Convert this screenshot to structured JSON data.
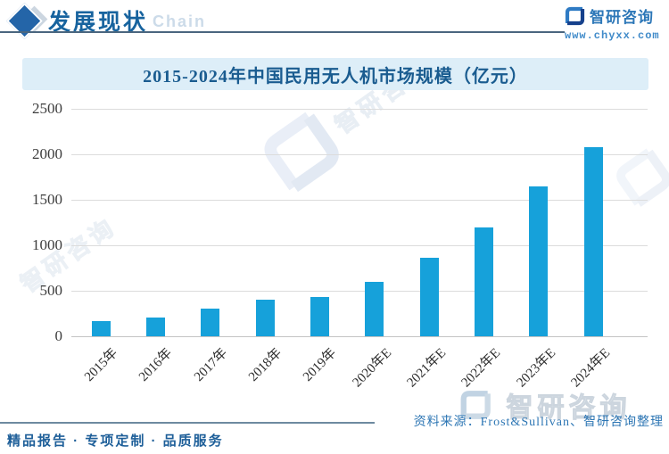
{
  "header": {
    "section_title": "发展现状",
    "watermark_text": "Chain",
    "brand_name": "智研咨询",
    "brand_url": "www.chyxx.com"
  },
  "chart_data": {
    "type": "bar",
    "title": "2015-2024年中国民用无人机市场规模（亿元）",
    "categories": [
      "2015年",
      "2016年",
      "2017年",
      "2018年",
      "2019年",
      "2020年E",
      "2021年E",
      "2022年E",
      "2023年E",
      "2024年E"
    ],
    "values": [
      165,
      205,
      305,
      405,
      435,
      600,
      865,
      1195,
      1650,
      2075
    ],
    "xlabel": "",
    "ylabel": "",
    "ylim": [
      0,
      2500
    ],
    "yticks": [
      0,
      500,
      1000,
      1500,
      2000,
      2500
    ],
    "grid": "horizontal",
    "legend": "none",
    "bar_color": "#16a1da"
  },
  "watermark": {
    "brand": "智研咨询"
  },
  "footer": {
    "source": "资料来源：Frost&Sullivan、智研咨询整理",
    "tagline": "精品报告 · 专项定制 · 品质服务"
  }
}
